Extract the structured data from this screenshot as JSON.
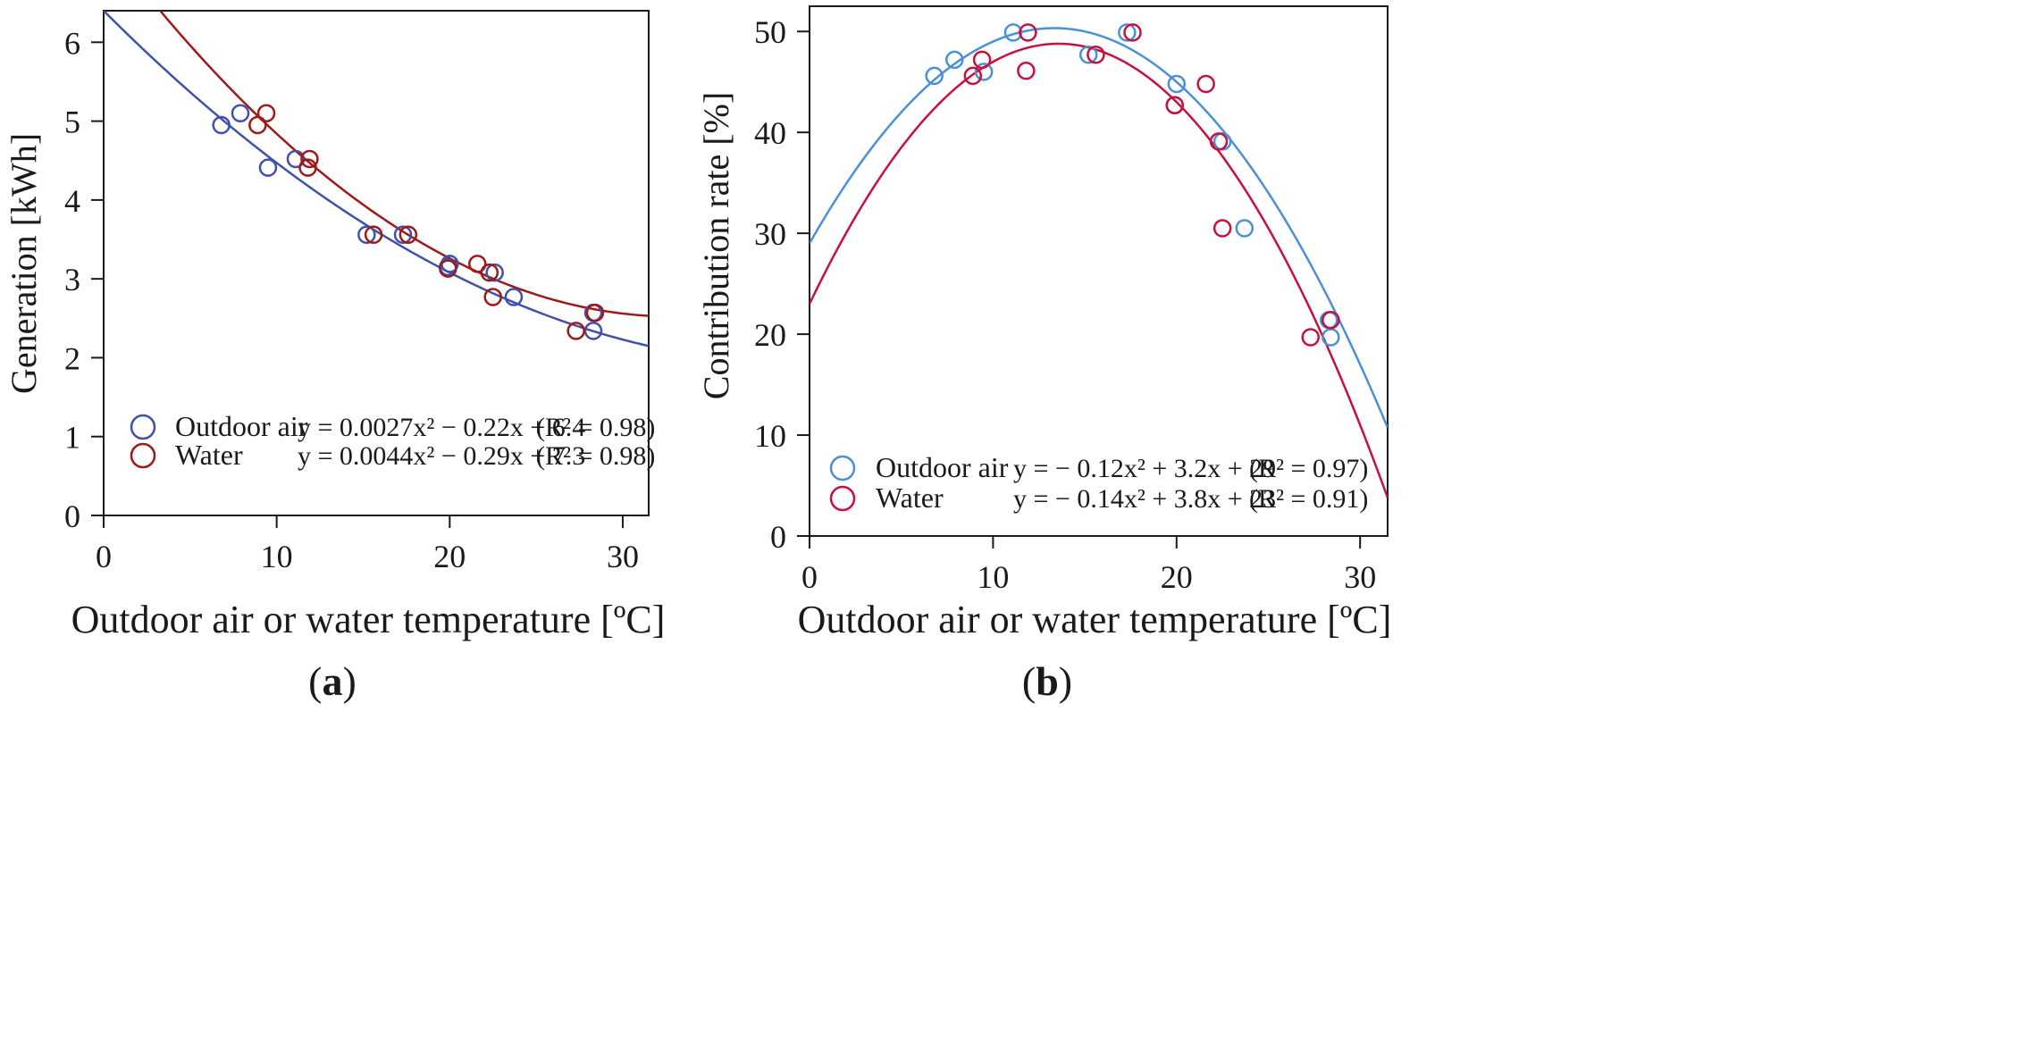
{
  "chart_data": [
    {
      "type": "scatter",
      "panel_label": "a",
      "xlabel": "Outdoor air or water temperature [ºC]",
      "ylabel": "Generation [kWh]",
      "xlim": [
        0,
        31.5
      ],
      "ylim": [
        0,
        6.4
      ],
      "xticks": [
        0,
        10,
        20,
        30
      ],
      "yticks": [
        0,
        1,
        2,
        3,
        4,
        5,
        6
      ],
      "legend_position": "bottom-right",
      "series": [
        {
          "name": "Outdoor air",
          "color": "#3f51a8",
          "fit_coefficients": [
            0.0027,
            -0.22,
            6.4
          ],
          "equation": "y = 0.0027x² − 0.22x + 6.4",
          "r2": "(R² = 0.98)",
          "points": [
            [
              6.8,
              4.95
            ],
            [
              7.9,
              5.1
            ],
            [
              9.5,
              4.41
            ],
            [
              11.1,
              4.52
            ],
            [
              15.2,
              3.56
            ],
            [
              17.3,
              3.56
            ],
            [
              19.9,
              3.15
            ],
            [
              20.0,
              3.19
            ],
            [
              22.6,
              3.08
            ],
            [
              23.7,
              2.77
            ],
            [
              28.3,
              2.34
            ],
            [
              28.3,
              2.57
            ]
          ]
        },
        {
          "name": "Water",
          "color": "#a01818",
          "fit_coefficients": [
            0.0044,
            -0.29,
            7.3
          ],
          "equation": "y = 0.0044x² − 0.29x + 7.3",
          "r2": "(R² = 0.98)",
          "points": [
            [
              8.9,
              4.95
            ],
            [
              9.4,
              5.1
            ],
            [
              11.8,
              4.41
            ],
            [
              11.9,
              4.52
            ],
            [
              15.6,
              3.56
            ],
            [
              17.6,
              3.56
            ],
            [
              19.9,
              3.13
            ],
            [
              21.6,
              3.19
            ],
            [
              22.3,
              3.08
            ],
            [
              22.5,
              2.77
            ],
            [
              27.3,
              2.34
            ],
            [
              28.4,
              2.57
            ]
          ]
        }
      ]
    },
    {
      "type": "scatter",
      "panel_label": "b",
      "xlabel": "Outdoor air or water temperature [ºC]",
      "ylabel": "Contribution rate [%]",
      "xlim": [
        0,
        31.5
      ],
      "ylim": [
        0,
        52.5
      ],
      "xticks": [
        0,
        10,
        20,
        30
      ],
      "yticks": [
        0,
        10,
        20,
        30,
        40,
        50
      ],
      "legend_position": "bottom-right",
      "series": [
        {
          "name": "Outdoor air",
          "color": "#4a90d9",
          "fit_coefficients": [
            -0.12,
            3.2,
            29
          ],
          "equation": "y = − 0.12x² + 3.2x + 29",
          "r2": "(R² = 0.97)",
          "points": [
            [
              6.8,
              45.6
            ],
            [
              7.9,
              47.2
            ],
            [
              9.5,
              46.0
            ],
            [
              11.1,
              49.9
            ],
            [
              15.2,
              47.7
            ],
            [
              17.3,
              49.9
            ],
            [
              20.0,
              44.8
            ],
            [
              19.9,
              42.7
            ],
            [
              22.5,
              39.1
            ],
            [
              23.7,
              30.5
            ],
            [
              28.3,
              21.4
            ],
            [
              28.4,
              19.7
            ]
          ]
        },
        {
          "name": "Water",
          "color": "#c8103e",
          "fit_coefficients": [
            -0.14,
            3.8,
            23
          ],
          "equation": "y = − 0.14x² + 3.8x + 23",
          "r2": "(R² = 0.91)",
          "points": [
            [
              8.9,
              45.6
            ],
            [
              9.4,
              47.2
            ],
            [
              11.8,
              46.1
            ],
            [
              11.9,
              49.9
            ],
            [
              15.6,
              47.7
            ],
            [
              17.6,
              49.9
            ],
            [
              19.9,
              42.7
            ],
            [
              21.6,
              44.8
            ],
            [
              22.3,
              39.1
            ],
            [
              22.5,
              30.5
            ],
            [
              27.3,
              19.7
            ],
            [
              28.4,
              21.4
            ]
          ]
        }
      ]
    }
  ]
}
